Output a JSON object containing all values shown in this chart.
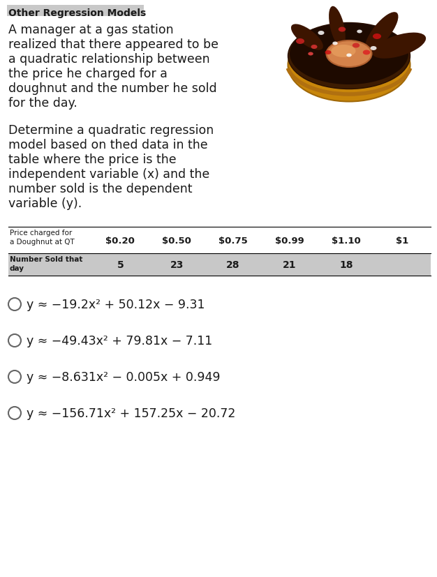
{
  "title": "Other Regression Models",
  "paragraph1_lines": [
    "A manager at a gas station",
    "realized that there appeared to be",
    "a quadratic relationship between",
    "the price he charged for a",
    "doughnut and the number he sold",
    "for the day."
  ],
  "paragraph2_lines": [
    "Determine a quadratic regression",
    "model based on thed data in the",
    "table where the price is the",
    "independent variable (x) and the",
    "number sold is the dependent",
    "variable (y)."
  ],
  "table_label1": "Price charged for\na Doughnut at QT",
  "table_label2": "Number Sold that\nday",
  "table_prices": [
    "$0.20",
    "$0.50",
    "$0.75",
    "$0.99",
    "$1.10",
    "$1"
  ],
  "table_values": [
    "5",
    "23",
    "28",
    "21",
    "18",
    ""
  ],
  "option1": "y ≈ −19.2x² + 50.12x − 9.31",
  "option2": "y ≈ −49.43x² + 79.81x − 7.11",
  "option3": "y ≈ −8.631x² − 0.005x + 0.949",
  "option4": "y ≈ −156.71x² + 157.25x − 20.72",
  "bg_color": "#ffffff",
  "title_highlight": "#c8c8c8",
  "table_row_bg": "#c8c8c8",
  "text_color": "#1a1a1a",
  "title_fontsize": 10,
  "body_fontsize": 12.5,
  "table_label_fontsize": 7.5,
  "table_data_fontsize": 9,
  "option_fontsize": 12.5
}
